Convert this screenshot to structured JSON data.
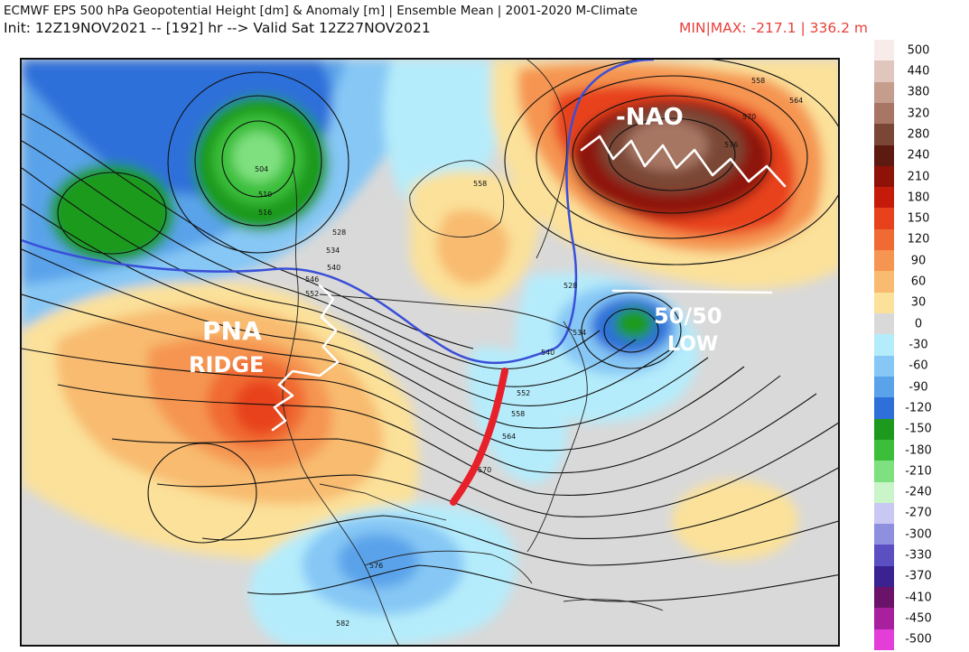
{
  "header": {
    "title_line1": "ECMWF EPS 500 hPa Geopotential Height [dm] & Anomaly [m] | Ensemble Mean | 2001-2020 M-Climate",
    "title_line2": "Init: 12Z19NOV2021 -- [192] hr --> Valid Sat 12Z27NOV2021",
    "minmax": "MIN|MAX: -217.1 | 336.2 m"
  },
  "annotations": {
    "nao": "-NAO",
    "low_line1": "50/50",
    "low_line2": "LOW",
    "pna_line1": "PNA",
    "pna_line2": "RIDGE"
  },
  "contour_labels": [
    "558",
    "564",
    "570",
    "576",
    "504",
    "510",
    "516",
    "528",
    "534",
    "540",
    "546",
    "552",
    "558",
    "528",
    "534",
    "540",
    "552",
    "558",
    "564",
    "570",
    "576",
    "582"
  ],
  "colorbar": [
    {
      "label": "500",
      "color": "#f7ece9"
    },
    {
      "label": "440",
      "color": "#e0c6bd"
    },
    {
      "label": "380",
      "color": "#c59d8d"
    },
    {
      "label": "320",
      "color": "#a77664"
    },
    {
      "label": "280",
      "color": "#7a4736"
    },
    {
      "label": "240",
      "color": "#5c1a10"
    },
    {
      "label": "210",
      "color": "#8e1208"
    },
    {
      "label": "180",
      "color": "#c41b0b"
    },
    {
      "label": "150",
      "color": "#e8421c"
    },
    {
      "label": "120",
      "color": "#f06a33"
    },
    {
      "label": "90",
      "color": "#f59551"
    },
    {
      "label": "60",
      "color": "#f8bb6f"
    },
    {
      "label": "30",
      "color": "#fbe19a"
    },
    {
      "label": "0",
      "color": "#d9d9d9"
    },
    {
      "label": "-30",
      "color": "#b5ecfb"
    },
    {
      "label": "-60",
      "color": "#86c7f5"
    },
    {
      "label": "-90",
      "color": "#5aa3ea"
    },
    {
      "label": "-120",
      "color": "#2e6fd9"
    },
    {
      "label": "-150",
      "color": "#1d9a1d"
    },
    {
      "label": "-180",
      "color": "#3bbf3b"
    },
    {
      "label": "-210",
      "color": "#7fe07f"
    },
    {
      "label": "-240",
      "color": "#c9f5c9"
    },
    {
      "label": "-270",
      "color": "#c8c8f2"
    },
    {
      "label": "-300",
      "color": "#8f8fe0"
    },
    {
      "label": "-330",
      "color": "#5b4fc2"
    },
    {
      "label": "-370",
      "color": "#3a2290"
    },
    {
      "label": "-410",
      "color": "#6a1368"
    },
    {
      "label": "-450",
      "color": "#a8209e"
    },
    {
      "label": "-500",
      "color": "#e33fd8"
    }
  ],
  "colors": {
    "annotation_white": "#ffffff",
    "trough_red": "#e8202a",
    "line_540_blue": "#3a4fd8"
  }
}
